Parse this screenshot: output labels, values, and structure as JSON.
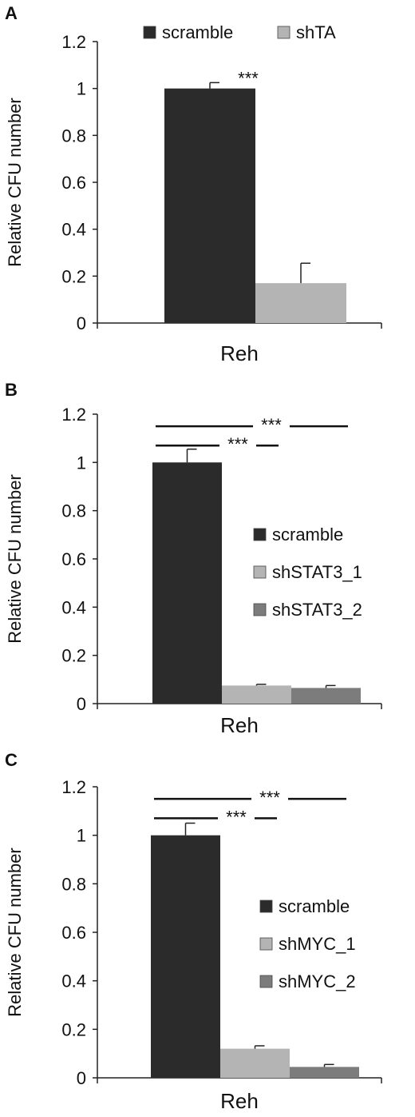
{
  "chart_data": [
    {
      "type": "bar",
      "panel_label": "A",
      "categories": [
        "Reh"
      ],
      "xlabel": "Reh",
      "ylabel": "Relative CFU number",
      "ylim": [
        0,
        1.2
      ],
      "yticks": [
        0,
        0.2,
        0.4,
        0.6,
        0.8,
        1,
        1.2
      ],
      "ytick_labels": [
        "0",
        "0.2",
        "0.4",
        "0.6",
        "0.8",
        "1",
        "1.2"
      ],
      "legend_position": "top",
      "series": [
        {
          "name": "scramble",
          "values": [
            1.0
          ],
          "error": [
            0.025
          ],
          "color": "#2b2b2b"
        },
        {
          "name": "shTA",
          "values": [
            0.17
          ],
          "error": [
            0.085
          ],
          "color": "#b4b4b4"
        }
      ],
      "annotations": [
        {
          "text": "***",
          "series": 0
        }
      ],
      "brackets": []
    },
    {
      "type": "bar",
      "panel_label": "B",
      "categories": [
        "Reh"
      ],
      "xlabel": "Reh",
      "ylabel": "Relative CFU number",
      "ylim": [
        0,
        1.2
      ],
      "yticks": [
        0,
        0.2,
        0.4,
        0.6,
        0.8,
        1,
        1.2
      ],
      "ytick_labels": [
        "0",
        "0.2",
        "0.4",
        "0.6",
        "0.8",
        "1",
        "1.2"
      ],
      "legend_position": "right",
      "series": [
        {
          "name": "scramble",
          "values": [
            1.0
          ],
          "error": [
            0.055
          ],
          "color": "#2b2b2b"
        },
        {
          "name": "shSTAT3_1",
          "values": [
            0.075
          ],
          "error": [
            0.005
          ],
          "color": "#b4b4b4"
        },
        {
          "name": "shSTAT3_2",
          "values": [
            0.065
          ],
          "error": [
            0.01
          ],
          "color": "#7c7c7c"
        }
      ],
      "annotations": [],
      "brackets": [
        {
          "from": 0,
          "to": 2,
          "y": 1.15,
          "text": "***"
        },
        {
          "from": 0,
          "to": 1,
          "y": 1.07,
          "text": "***"
        }
      ]
    },
    {
      "type": "bar",
      "panel_label": "C",
      "categories": [
        "Reh"
      ],
      "xlabel": "Reh",
      "ylabel": "Relative CFU number",
      "ylim": [
        0,
        1.2
      ],
      "yticks": [
        0,
        0.2,
        0.4,
        0.6,
        0.8,
        1,
        1.2
      ],
      "ytick_labels": [
        "0",
        "0.2",
        "0.4",
        "0.6",
        "0.8",
        "1",
        "1.2"
      ],
      "legend_position": "right",
      "series": [
        {
          "name": "scramble",
          "values": [
            1.0
          ],
          "error": [
            0.05
          ],
          "color": "#2b2b2b"
        },
        {
          "name": "shMYC_1",
          "values": [
            0.12
          ],
          "error": [
            0.012
          ],
          "color": "#b4b4b4"
        },
        {
          "name": "shMYC_2",
          "values": [
            0.045
          ],
          "error": [
            0.01
          ],
          "color": "#7c7c7c"
        }
      ],
      "annotations": [],
      "brackets": [
        {
          "from": 0,
          "to": 2,
          "y": 1.15,
          "text": "***"
        },
        {
          "from": 0,
          "to": 1,
          "y": 1.07,
          "text": "***"
        }
      ]
    }
  ]
}
